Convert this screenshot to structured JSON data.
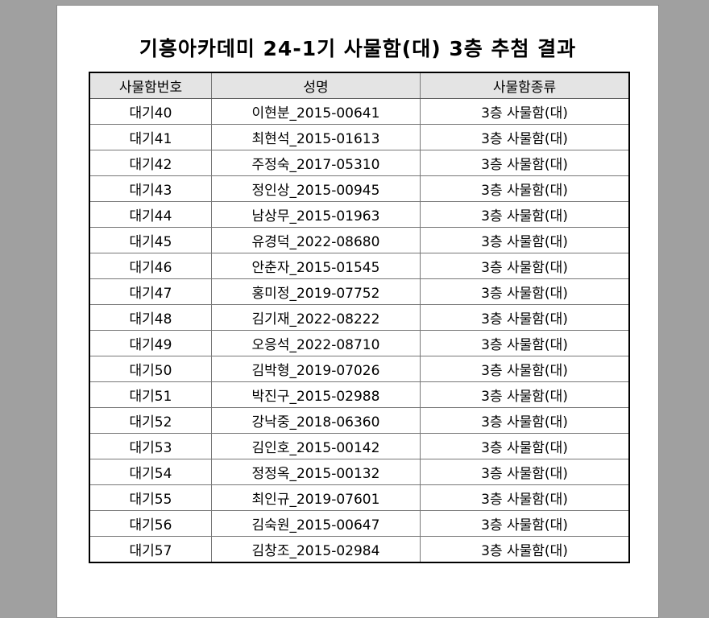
{
  "title": "기흥아카데미 24-1기 사물함(대) 3층 추첨 결과",
  "columns": [
    "사물함번호",
    "성명",
    "사물함종류"
  ],
  "rows": [
    [
      "대기40",
      "이현분_2015-00641",
      "3층 사물함(대)"
    ],
    [
      "대기41",
      "최현석_2015-01613",
      "3층 사물함(대)"
    ],
    [
      "대기42",
      "주정숙_2017-05310",
      "3층 사물함(대)"
    ],
    [
      "대기43",
      "정인상_2015-00945",
      "3층 사물함(대)"
    ],
    [
      "대기44",
      "남상무_2015-01963",
      "3층 사물함(대)"
    ],
    [
      "대기45",
      "유경덕_2022-08680",
      "3층 사물함(대)"
    ],
    [
      "대기46",
      "안춘자_2015-01545",
      "3층 사물함(대)"
    ],
    [
      "대기47",
      "홍미정_2019-07752",
      "3층 사물함(대)"
    ],
    [
      "대기48",
      "김기재_2022-08222",
      "3층 사물함(대)"
    ],
    [
      "대기49",
      "오응석_2022-08710",
      "3층 사물함(대)"
    ],
    [
      "대기50",
      "김박형_2019-07026",
      "3층 사물함(대)"
    ],
    [
      "대기51",
      "박진구_2015-02988",
      "3층 사물함(대)"
    ],
    [
      "대기52",
      "강낙중_2018-06360",
      "3층 사물함(대)"
    ],
    [
      "대기53",
      "김인호_2015-00142",
      "3층 사물함(대)"
    ],
    [
      "대기54",
      "정정옥_2015-00132",
      "3층 사물함(대)"
    ],
    [
      "대기55",
      "최인규_2019-07601",
      "3층 사물함(대)"
    ],
    [
      "대기56",
      "김숙원_2015-00647",
      "3층 사물함(대)"
    ],
    [
      "대기57",
      "김창조_2015-02984",
      "3층 사물함(대)"
    ]
  ]
}
